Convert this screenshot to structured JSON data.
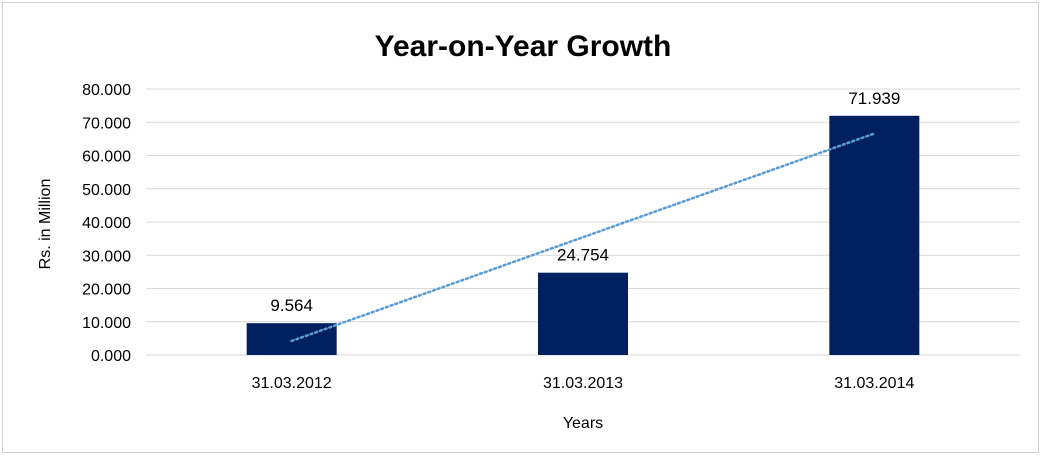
{
  "chart_data": {
    "type": "bar",
    "title": "Year-on-Year Growth",
    "xlabel": "Years",
    "ylabel": "Rs. in Million",
    "categories": [
      "31.03.2012",
      "31.03.2013",
      "31.03.2014"
    ],
    "values": [
      9.564,
      24.754,
      71.939
    ],
    "data_labels": [
      "9.564",
      "24.754",
      "71.939"
    ],
    "ylim": [
      0,
      80
    ],
    "yticks": [
      0,
      10,
      20,
      30,
      40,
      50,
      60,
      70,
      80
    ],
    "ytick_labels": [
      "0.000",
      "10.000",
      "20.000",
      "30.000",
      "40.000",
      "50.000",
      "60.000",
      "70.000",
      "80.000"
    ],
    "grid": true,
    "legend": "none",
    "trendline": {
      "type": "linear",
      "style": "dotted"
    },
    "colors": {
      "bar": "#002060",
      "trendline": "#5b9bd5",
      "grid": "#d9d9d9"
    }
  }
}
